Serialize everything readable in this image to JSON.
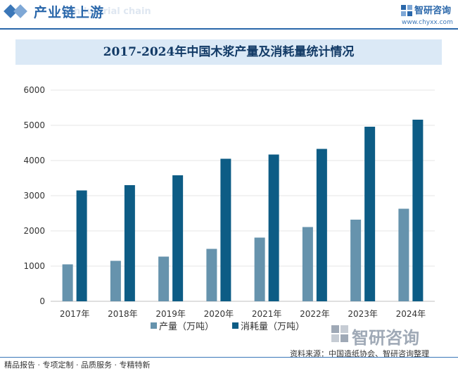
{
  "header": {
    "section_title": "产业链上游",
    "section_ghost": "Industrial chain",
    "brand_name": "智研咨询",
    "brand_url": "www.chyxx.com"
  },
  "chart_data": {
    "type": "bar",
    "title": "2017-2024年中国木浆产量及消耗量统计情况",
    "categories": [
      "2017年",
      "2018年",
      "2019年",
      "2020年",
      "2021年",
      "2022年",
      "2023年",
      "2024年"
    ],
    "series": [
      {
        "name": "产量（万吨）",
        "color": "#6693ad",
        "values": [
          1050,
          1150,
          1270,
          1490,
          1810,
          2110,
          2320,
          2630
        ]
      },
      {
        "name": "消耗量（万吨）",
        "color": "#0d5c85",
        "values": [
          3150,
          3300,
          3580,
          4050,
          4170,
          4330,
          4960,
          5160
        ]
      }
    ],
    "ylim": [
      0,
      6000
    ],
    "yticks": [
      0,
      1000,
      2000,
      3000,
      4000,
      5000,
      6000
    ],
    "grid": true,
    "legend_position": "bottom"
  },
  "footer": {
    "left_text": "精品报告 · 专项定制 · 品质服务 · 专精特新",
    "source_text": "资料来源：中国造纸协会、智研咨询整理",
    "watermark_name": "智研咨询"
  }
}
